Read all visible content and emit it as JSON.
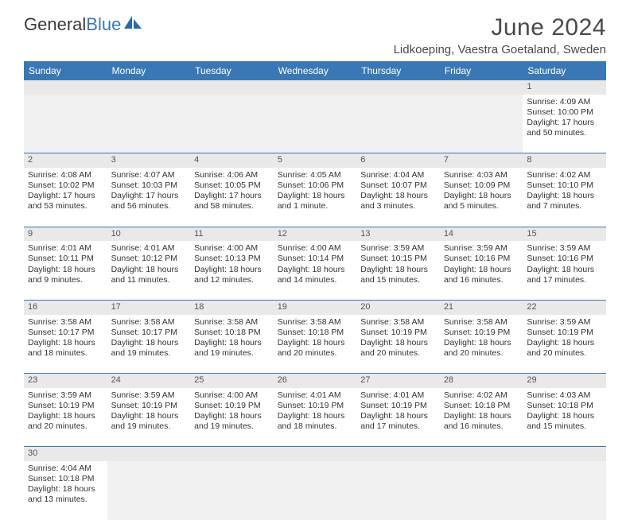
{
  "branding": {
    "logo_part1": "General",
    "logo_part2": "Blue",
    "logo_icon_color": "#2a6aa8"
  },
  "header": {
    "month_title": "June 2024",
    "location": "Lidkoeping, Vaestra Goetaland, Sweden"
  },
  "colors": {
    "header_bg": "#3a78b5",
    "header_text": "#ffffff",
    "daynum_bg": "#e9e9e9",
    "cell_border": "#3a78b5"
  },
  "weekdays": [
    "Sunday",
    "Monday",
    "Tuesday",
    "Wednesday",
    "Thursday",
    "Friday",
    "Saturday"
  ],
  "weeks": [
    {
      "days": [
        null,
        null,
        null,
        null,
        null,
        null,
        {
          "n": "1",
          "sunrise": "Sunrise: 4:09 AM",
          "sunset": "Sunset: 10:00 PM",
          "daylight1": "Daylight: 17 hours",
          "daylight2": "and 50 minutes."
        }
      ]
    },
    {
      "days": [
        {
          "n": "2",
          "sunrise": "Sunrise: 4:08 AM",
          "sunset": "Sunset: 10:02 PM",
          "daylight1": "Daylight: 17 hours",
          "daylight2": "and 53 minutes."
        },
        {
          "n": "3",
          "sunrise": "Sunrise: 4:07 AM",
          "sunset": "Sunset: 10:03 PM",
          "daylight1": "Daylight: 17 hours",
          "daylight2": "and 56 minutes."
        },
        {
          "n": "4",
          "sunrise": "Sunrise: 4:06 AM",
          "sunset": "Sunset: 10:05 PM",
          "daylight1": "Daylight: 17 hours",
          "daylight2": "and 58 minutes."
        },
        {
          "n": "5",
          "sunrise": "Sunrise: 4:05 AM",
          "sunset": "Sunset: 10:06 PM",
          "daylight1": "Daylight: 18 hours",
          "daylight2": "and 1 minute."
        },
        {
          "n": "6",
          "sunrise": "Sunrise: 4:04 AM",
          "sunset": "Sunset: 10:07 PM",
          "daylight1": "Daylight: 18 hours",
          "daylight2": "and 3 minutes."
        },
        {
          "n": "7",
          "sunrise": "Sunrise: 4:03 AM",
          "sunset": "Sunset: 10:09 PM",
          "daylight1": "Daylight: 18 hours",
          "daylight2": "and 5 minutes."
        },
        {
          "n": "8",
          "sunrise": "Sunrise: 4:02 AM",
          "sunset": "Sunset: 10:10 PM",
          "daylight1": "Daylight: 18 hours",
          "daylight2": "and 7 minutes."
        }
      ]
    },
    {
      "days": [
        {
          "n": "9",
          "sunrise": "Sunrise: 4:01 AM",
          "sunset": "Sunset: 10:11 PM",
          "daylight1": "Daylight: 18 hours",
          "daylight2": "and 9 minutes."
        },
        {
          "n": "10",
          "sunrise": "Sunrise: 4:01 AM",
          "sunset": "Sunset: 10:12 PM",
          "daylight1": "Daylight: 18 hours",
          "daylight2": "and 11 minutes."
        },
        {
          "n": "11",
          "sunrise": "Sunrise: 4:00 AM",
          "sunset": "Sunset: 10:13 PM",
          "daylight1": "Daylight: 18 hours",
          "daylight2": "and 12 minutes."
        },
        {
          "n": "12",
          "sunrise": "Sunrise: 4:00 AM",
          "sunset": "Sunset: 10:14 PM",
          "daylight1": "Daylight: 18 hours",
          "daylight2": "and 14 minutes."
        },
        {
          "n": "13",
          "sunrise": "Sunrise: 3:59 AM",
          "sunset": "Sunset: 10:15 PM",
          "daylight1": "Daylight: 18 hours",
          "daylight2": "and 15 minutes."
        },
        {
          "n": "14",
          "sunrise": "Sunrise: 3:59 AM",
          "sunset": "Sunset: 10:16 PM",
          "daylight1": "Daylight: 18 hours",
          "daylight2": "and 16 minutes."
        },
        {
          "n": "15",
          "sunrise": "Sunrise: 3:59 AM",
          "sunset": "Sunset: 10:16 PM",
          "daylight1": "Daylight: 18 hours",
          "daylight2": "and 17 minutes."
        }
      ]
    },
    {
      "days": [
        {
          "n": "16",
          "sunrise": "Sunrise: 3:58 AM",
          "sunset": "Sunset: 10:17 PM",
          "daylight1": "Daylight: 18 hours",
          "daylight2": "and 18 minutes."
        },
        {
          "n": "17",
          "sunrise": "Sunrise: 3:58 AM",
          "sunset": "Sunset: 10:17 PM",
          "daylight1": "Daylight: 18 hours",
          "daylight2": "and 19 minutes."
        },
        {
          "n": "18",
          "sunrise": "Sunrise: 3:58 AM",
          "sunset": "Sunset: 10:18 PM",
          "daylight1": "Daylight: 18 hours",
          "daylight2": "and 19 minutes."
        },
        {
          "n": "19",
          "sunrise": "Sunrise: 3:58 AM",
          "sunset": "Sunset: 10:18 PM",
          "daylight1": "Daylight: 18 hours",
          "daylight2": "and 20 minutes."
        },
        {
          "n": "20",
          "sunrise": "Sunrise: 3:58 AM",
          "sunset": "Sunset: 10:19 PM",
          "daylight1": "Daylight: 18 hours",
          "daylight2": "and 20 minutes."
        },
        {
          "n": "21",
          "sunrise": "Sunrise: 3:58 AM",
          "sunset": "Sunset: 10:19 PM",
          "daylight1": "Daylight: 18 hours",
          "daylight2": "and 20 minutes."
        },
        {
          "n": "22",
          "sunrise": "Sunrise: 3:59 AM",
          "sunset": "Sunset: 10:19 PM",
          "daylight1": "Daylight: 18 hours",
          "daylight2": "and 20 minutes."
        }
      ]
    },
    {
      "days": [
        {
          "n": "23",
          "sunrise": "Sunrise: 3:59 AM",
          "sunset": "Sunset: 10:19 PM",
          "daylight1": "Daylight: 18 hours",
          "daylight2": "and 20 minutes."
        },
        {
          "n": "24",
          "sunrise": "Sunrise: 3:59 AM",
          "sunset": "Sunset: 10:19 PM",
          "daylight1": "Daylight: 18 hours",
          "daylight2": "and 19 minutes."
        },
        {
          "n": "25",
          "sunrise": "Sunrise: 4:00 AM",
          "sunset": "Sunset: 10:19 PM",
          "daylight1": "Daylight: 18 hours",
          "daylight2": "and 19 minutes."
        },
        {
          "n": "26",
          "sunrise": "Sunrise: 4:01 AM",
          "sunset": "Sunset: 10:19 PM",
          "daylight1": "Daylight: 18 hours",
          "daylight2": "and 18 minutes."
        },
        {
          "n": "27",
          "sunrise": "Sunrise: 4:01 AM",
          "sunset": "Sunset: 10:19 PM",
          "daylight1": "Daylight: 18 hours",
          "daylight2": "and 17 minutes."
        },
        {
          "n": "28",
          "sunrise": "Sunrise: 4:02 AM",
          "sunset": "Sunset: 10:18 PM",
          "daylight1": "Daylight: 18 hours",
          "daylight2": "and 16 minutes."
        },
        {
          "n": "29",
          "sunrise": "Sunrise: 4:03 AM",
          "sunset": "Sunset: 10:18 PM",
          "daylight1": "Daylight: 18 hours",
          "daylight2": "and 15 minutes."
        }
      ]
    },
    {
      "days": [
        {
          "n": "30",
          "sunrise": "Sunrise: 4:04 AM",
          "sunset": "Sunset: 10:18 PM",
          "daylight1": "Daylight: 18 hours",
          "daylight2": "and 13 minutes."
        },
        null,
        null,
        null,
        null,
        null,
        null
      ]
    }
  ]
}
